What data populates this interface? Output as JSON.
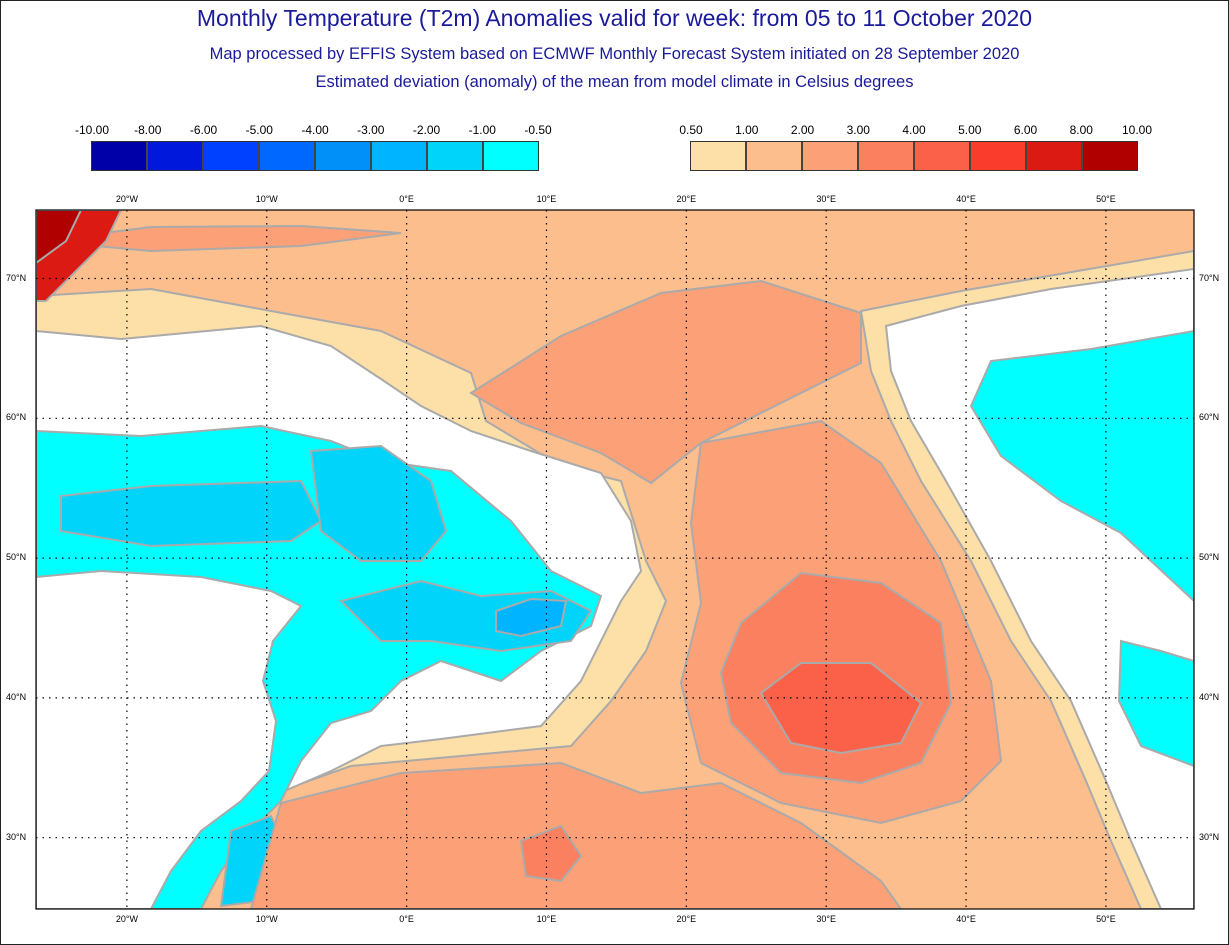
{
  "header": {
    "title": "Monthly Temperature (T2m) Anomalies valid for week: from 05 to 11 October 2020",
    "subtitle1": "Map processed by EFFIS System based on ECMWF Monthly Forecast System initiated on 28 September 2020",
    "subtitle2": "Estimated deviation (anomaly) of the mean from model climate in Celsius degrees"
  },
  "legend_negative": {
    "labels": [
      "-10.00",
      "-8.00",
      "-6.00",
      "-5.00",
      "-4.00",
      "-3.00",
      "-2.00",
      "-1.00",
      "-0.50"
    ],
    "colors": [
      "#0000a8",
      "#0018dc",
      "#0040ff",
      "#0068ff",
      "#0090f8",
      "#00b4ff",
      "#00d4fa",
      "#00ffff"
    ]
  },
  "legend_positive": {
    "labels": [
      "0.50",
      "1.00",
      "2.00",
      "3.00",
      "4.00",
      "5.00",
      "6.00",
      "8.00",
      "10.00"
    ],
    "colors": [
      "#fddfa8",
      "#fdbe8e",
      "#fca078",
      "#fb8060",
      "#fb6048",
      "#fa3c2c",
      "#dc1a14",
      "#b00000"
    ]
  },
  "map": {
    "projection": "lat-lon",
    "lon_range": [
      -26.5,
      56.3
    ],
    "lat_range": [
      24.9,
      74.9
    ],
    "lon_ticks": [
      {
        "v": -20,
        "label": "20°W"
      },
      {
        "v": -10,
        "label": "10°W"
      },
      {
        "v": 0,
        "label": "0°E"
      },
      {
        "v": 10,
        "label": "10°E"
      },
      {
        "v": 20,
        "label": "20°E"
      },
      {
        "v": 30,
        "label": "30°E"
      },
      {
        "v": 40,
        "label": "40°E"
      },
      {
        "v": 50,
        "label": "50°E"
      }
    ],
    "lat_ticks": [
      {
        "v": 70,
        "label": "70°N"
      },
      {
        "v": 60,
        "label": "60°N"
      },
      {
        "v": 50,
        "label": "50°N"
      },
      {
        "v": 40,
        "label": "40°N"
      },
      {
        "v": 30,
        "label": "30°N"
      }
    ],
    "neutral_color": "#ffffff"
  }
}
